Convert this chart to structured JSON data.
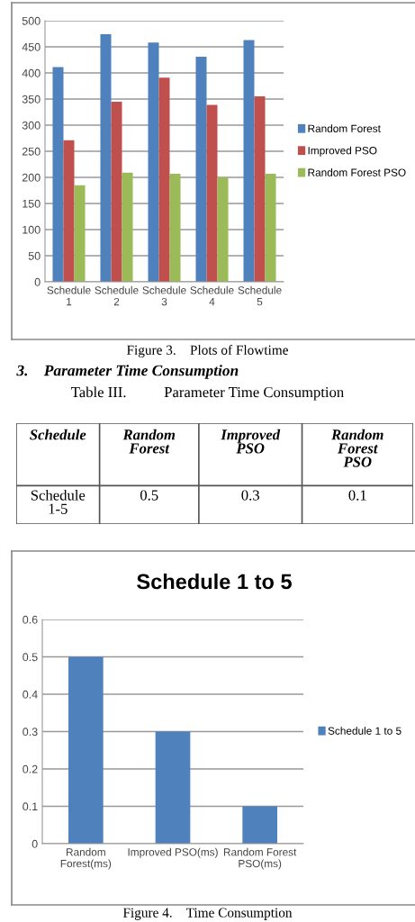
{
  "chart_data": [
    {
      "type": "bar",
      "categories": [
        "Schedule\n1",
        "Schedule\n2",
        "Schedule\n3",
        "Schedule\n4",
        "Schedule\n5"
      ],
      "series": [
        {
          "name": "Random Forest",
          "color": "#4f81bd",
          "values": [
            411,
            474,
            458,
            431,
            463
          ]
        },
        {
          "name": "Improved PSO",
          "color": "#c0504d",
          "values": [
            271,
            345,
            391,
            339,
            355
          ]
        },
        {
          "name": "Random Forest PSO",
          "color": "#9bbb59",
          "values": [
            185,
            209,
            207,
            200,
            207
          ]
        }
      ],
      "ylim": [
        0,
        500
      ],
      "yticks": [
        0,
        50,
        100,
        150,
        200,
        250,
        300,
        350,
        400,
        450,
        500
      ],
      "grid": "y",
      "legend": "right",
      "annotations": [
        "Figure 3.    Plots of Flowtime"
      ]
    },
    {
      "type": "other",
      "subtitle": "3.    Parameter Time Consumption",
      "title": "Table III.          Parameter Time Consumption",
      "ylabel": "Schedule",
      "categories": [
        "Random\nForest",
        "Improved\nPSO",
        "Random\nForest\nPSO"
      ],
      "y_categories": [
        "Schedule\n1-5"
      ],
      "values": [
        0.5,
        0.3,
        0.1
      ],
      "data_labels": true
    },
    {
      "type": "bar",
      "title": "Schedule 1 to 5",
      "categories": [
        "Random\nForest(ms)",
        "Improved PSO(ms)",
        "Random Forest\nPSO(ms)"
      ],
      "series": [
        {
          "name": "Schedule 1 to 5",
          "color": "#4f81bd",
          "values": [
            0.5,
            0.3,
            0.1
          ]
        }
      ],
      "ylim": [
        0,
        0.6
      ],
      "yticks": [
        {
          "value": 0,
          "label": "0"
        },
        0.1,
        0.2,
        0.3,
        0.4,
        0.5,
        0.6
      ],
      "grid": "y",
      "legend": "right",
      "annotations": [
        "Figure 4.    Time Consumption"
      ]
    }
  ]
}
